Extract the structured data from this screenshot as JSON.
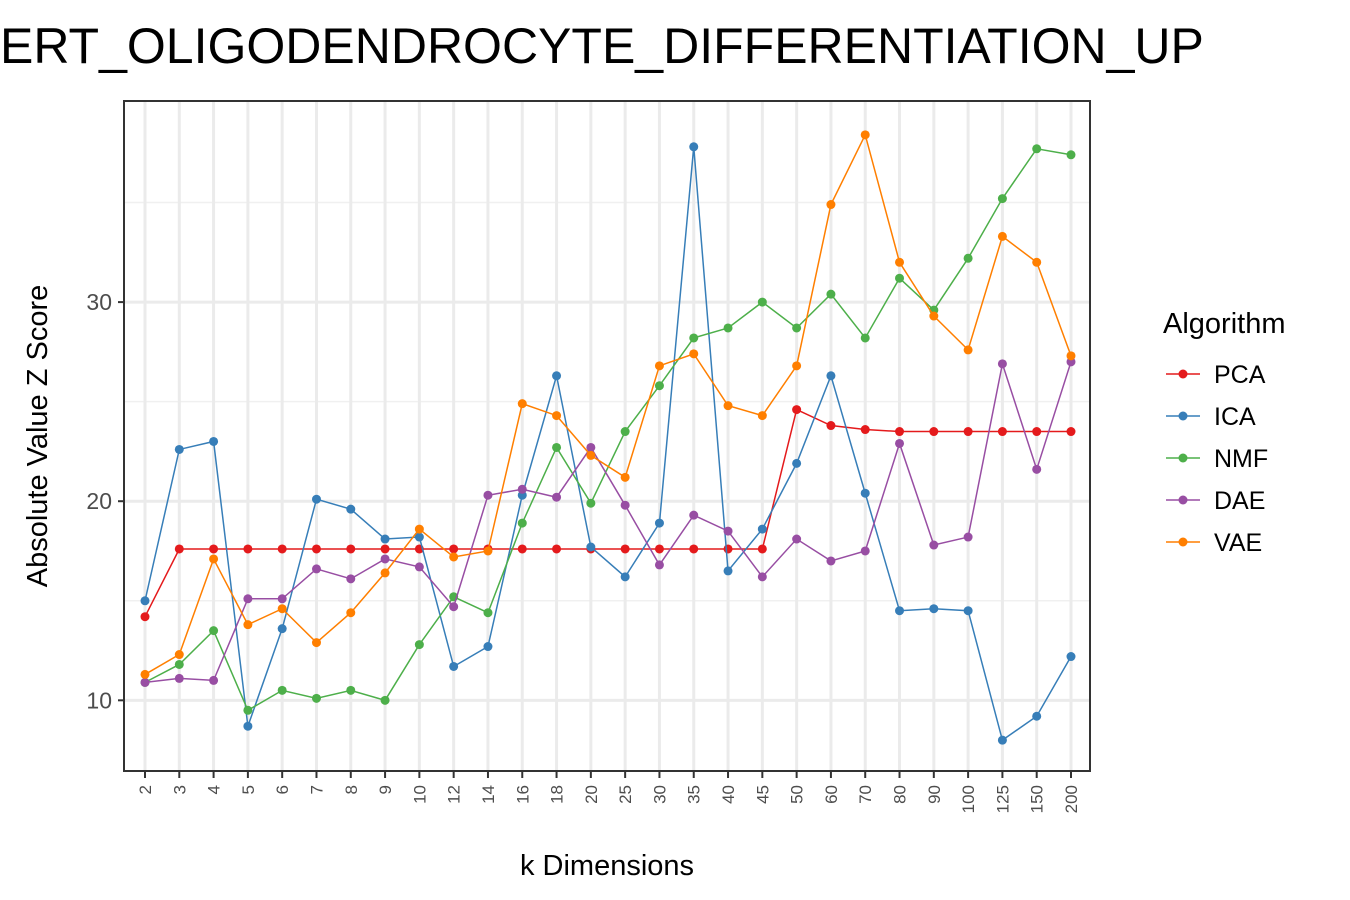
{
  "chart_data": {
    "type": "line",
    "title": "ERT_OLIGODENDROCYTE_DIFFERENTIATION_UP",
    "xlabel": "k Dimensions",
    "ylabel": "Absolute Value Z Score",
    "categories": [
      "2",
      "3",
      "4",
      "5",
      "6",
      "7",
      "8",
      "9",
      "10",
      "12",
      "14",
      "16",
      "18",
      "20",
      "25",
      "30",
      "35",
      "40",
      "45",
      "50",
      "60",
      "70",
      "80",
      "90",
      "100",
      "125",
      "150",
      "200"
    ],
    "y_ticks": [
      10,
      20,
      30
    ],
    "ylim": [
      6.45,
      40.1
    ],
    "grid": true,
    "legend": {
      "title": "Algorithm",
      "position": "right"
    },
    "series": [
      {
        "name": "PCA",
        "color": "#e41a1c",
        "values": [
          14.2,
          17.6,
          17.6,
          17.6,
          17.6,
          17.6,
          17.6,
          17.6,
          17.6,
          17.6,
          17.6,
          17.6,
          17.6,
          17.6,
          17.6,
          17.6,
          17.6,
          17.6,
          17.6,
          24.6,
          23.8,
          23.6,
          23.5,
          23.5,
          23.5,
          23.5,
          23.5,
          23.5
        ]
      },
      {
        "name": "ICA",
        "color": "#377eb8",
        "values": [
          15.0,
          22.6,
          23.0,
          8.7,
          13.6,
          20.1,
          19.6,
          18.1,
          18.2,
          11.7,
          12.7,
          20.3,
          26.3,
          17.7,
          16.2,
          18.9,
          37.8,
          16.5,
          18.6,
          21.9,
          26.3,
          20.4,
          14.5,
          14.6,
          14.5,
          8.0,
          9.2,
          12.2
        ]
      },
      {
        "name": "NMF",
        "color": "#4daf4a",
        "values": [
          10.9,
          11.8,
          13.5,
          9.5,
          10.5,
          10.1,
          10.5,
          10.0,
          12.8,
          15.2,
          14.4,
          18.9,
          22.7,
          19.9,
          23.5,
          25.8,
          28.2,
          28.7,
          30.0,
          28.7,
          30.4,
          28.2,
          31.2,
          29.6,
          32.2,
          35.2,
          37.7,
          37.4
        ]
      },
      {
        "name": "DAE",
        "color": "#984ea3",
        "values": [
          10.9,
          11.1,
          11.0,
          15.1,
          15.1,
          16.6,
          16.1,
          17.1,
          16.7,
          14.7,
          20.3,
          20.6,
          20.2,
          22.7,
          19.8,
          16.8,
          19.3,
          18.5,
          16.2,
          18.1,
          17.0,
          17.5,
          22.9,
          17.8,
          18.2,
          26.9,
          21.6,
          27.0
        ]
      },
      {
        "name": "VAE",
        "color": "#ff7f00",
        "values": [
          11.3,
          12.3,
          17.1,
          13.8,
          14.6,
          12.9,
          14.4,
          16.4,
          18.6,
          17.2,
          17.5,
          24.9,
          24.3,
          22.3,
          21.2,
          26.8,
          27.4,
          24.8,
          24.3,
          26.8,
          34.9,
          38.4,
          32.0,
          29.3,
          27.6,
          33.3,
          32.0,
          27.3
        ]
      }
    ]
  }
}
